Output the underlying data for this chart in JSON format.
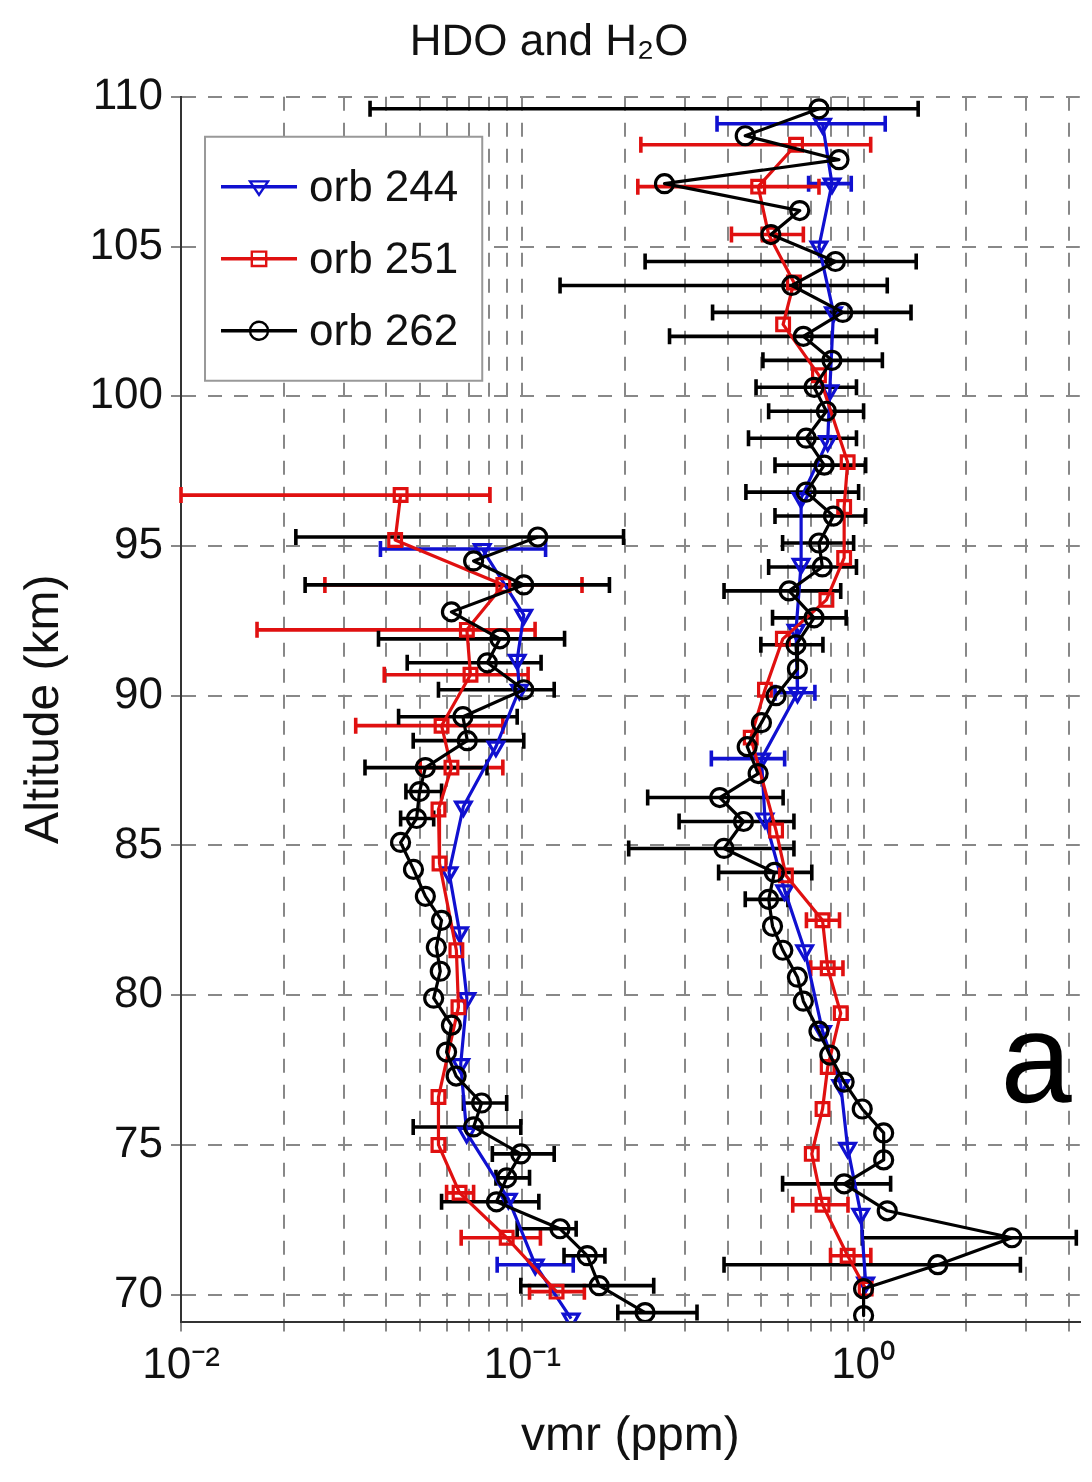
{
  "chart_data": {
    "type": "line",
    "title": "HDO and H₂O",
    "xlabel": "vmr (ppm)",
    "ylabel": "Altitude (km)",
    "annotations": [
      "a"
    ],
    "log": "x",
    "grid": true,
    "legend": "top left",
    "xlim": [
      0.01,
      4.3
    ],
    "ylim": [
      69.1,
      110
    ],
    "xticks": [
      {
        "value": 0.01,
        "label": "10⁻²"
      },
      {
        "value": 0.02,
        "label": null
      },
      {
        "value": 0.03,
        "label": null
      },
      {
        "value": 0.04,
        "label": null
      },
      {
        "value": 0.05,
        "label": null
      },
      {
        "value": 0.06,
        "label": null
      },
      {
        "value": 0.07,
        "label": null
      },
      {
        "value": 0.08,
        "label": null
      },
      {
        "value": 0.09,
        "label": null
      },
      {
        "value": 0.1,
        "label": "10⁻¹"
      },
      {
        "value": 0.2,
        "label": null
      },
      {
        "value": 0.3,
        "label": null
      },
      {
        "value": 0.4,
        "label": null
      },
      {
        "value": 0.5,
        "label": null
      },
      {
        "value": 0.6,
        "label": null
      },
      {
        "value": 0.7,
        "label": null
      },
      {
        "value": 0.8,
        "label": null
      },
      {
        "value": 0.9,
        "label": null
      },
      {
        "value": 1,
        "label": "10⁰"
      },
      {
        "value": 2,
        "label": null
      },
      {
        "value": 3,
        "label": null
      },
      {
        "value": 4,
        "label": null
      }
    ],
    "yticks": [
      70,
      75,
      80,
      85,
      90,
      95,
      100,
      105,
      110
    ],
    "series": [
      {
        "name": "orb 244",
        "color": "#1010d0",
        "marker": "triangle",
        "x": [
          0.758,
          0.808,
          0.74,
          0.816,
          0.796,
          0.785,
          0.656,
          0.656,
          0.634,
          0.64,
          0.502,
          0.514,
          0.587,
          0.672,
          0.758,
          0.857,
          0.898,
          0.981,
          1.014
        ],
        "values": [
          109.1,
          107.1,
          105.0,
          102.8,
          100.2,
          98.5,
          96.6,
          94.4,
          92.2,
          90.1,
          87.9,
          85.9,
          83.5,
          81.5,
          78.8,
          77.0,
          74.9,
          72.7,
          70.4
        ],
        "xerrors": [
          [
            0.372,
            1.157
          ],
          [
            0.69,
            0.92
          ],
          null,
          null,
          null,
          null,
          null,
          null,
          null,
          [
            0.55,
            0.72
          ],
          [
            0.358,
            0.587
          ],
          null,
          null,
          null,
          null,
          null,
          null,
          null,
          null
        ]
      },
      {
        "name": "orb 251",
        "color": "#e01010",
        "marker": "square",
        "x": [
          0.634,
          0.491,
          0.527,
          0.625,
          0.581,
          0.74,
          0.898,
          0.877,
          0.877,
          0.778,
          0.58,
          0.514,
          0.467,
          0.554,
          0.592,
          0.758,
          0.785,
          0.857,
          0.785,
          0.758,
          0.705,
          0.758,
          0.898,
          1.014
        ],
        "values": [
          108.4,
          107.0,
          105.4,
          103.8,
          102.4,
          100.7,
          97.8,
          96.3,
          94.6,
          93.2,
          91.9,
          90.2,
          88.6,
          85.5,
          84.0,
          82.5,
          80.9,
          79.4,
          77.6,
          76.2,
          74.7,
          73.0,
          71.3,
          70.2
        ],
        "xerrors": [
          [
            0.2225,
            1.049
          ],
          [
            0.218,
            0.74
          ],
          [
            0.41,
            0.666
          ],
          null,
          null,
          null,
          null,
          null,
          null,
          null,
          null,
          null,
          null,
          null,
          null,
          [
            0.68,
            0.85
          ],
          [
            0.7,
            0.87
          ],
          null,
          null,
          null,
          null,
          [
            0.62,
            0.9
          ],
          [
            0.8,
            1.05
          ],
          null
        ]
      },
      {
        "name": "orb 262",
        "color": "#000000",
        "marker": "circle",
        "x": [
          0.74,
          0.45,
          0.847,
          0.261,
          0.65,
          0.535,
          0.827,
          0.616,
          0.869,
          0.666,
          0.808,
          0.716,
          0.778,
          0.679,
          0.767,
          0.679,
          0.816,
          0.74,
          0.757,
          0.605,
          0.716,
          0.634,
          0.64,
          0.554,
          0.502,
          0.456,
          0.491,
          0.379,
          0.445,
          0.39,
          0.548,
          0.527,
          0.541,
          0.58,
          0.64,
          0.666,
          0.74,
          0.796,
          0.877,
          0.991,
          1.145,
          1.145,
          0.877,
          1.173,
          2.72,
          1.65,
          1.0,
          1.0
        ],
        "values": [
          109.6,
          108.7,
          107.9,
          107.1,
          106.2,
          105.4,
          104.5,
          103.7,
          102.8,
          102.0,
          101.2,
          100.3,
          99.5,
          98.6,
          97.7,
          96.8,
          96.0,
          95.1,
          94.3,
          93.5,
          92.6,
          91.7,
          90.9,
          90.0,
          89.1,
          88.3,
          87.4,
          86.6,
          85.8,
          84.9,
          84.1,
          83.2,
          82.3,
          81.5,
          80.6,
          79.8,
          78.8,
          78.0,
          77.1,
          76.2,
          75.4,
          74.5,
          73.7,
          72.8,
          71.9,
          71.0,
          70.2,
          69.3
        ],
        "xerrors": [
          [
            0.0358,
            1.445
          ],
          null,
          null,
          null,
          null,
          null,
          [
            0.229,
            1.426
          ],
          [
            0.129,
            1.173
          ],
          [
            0.361,
            1.377
          ],
          [
            0.27,
            1.09
          ],
          [
            0.507,
            1.135
          ],
          [
            0.484,
            0.953
          ],
          [
            0.527,
            1.0
          ],
          [
            0.46,
            0.953
          ],
          [
            0.55,
            1.014
          ],
          [
            0.452,
            0.967
          ],
          [
            0.55,
            1.014
          ],
          [
            0.579,
            0.935
          ],
          [
            0.527,
            0.953
          ],
          [
            0.39,
            0.857
          ],
          [
            0.541,
            0.889
          ],
          [
            0.5,
            0.76
          ],
          null,
          null,
          null,
          null,
          null,
          [
            0.233,
            0.581
          ],
          [
            0.288,
            0.625
          ],
          [
            0.205,
            0.625
          ],
          [
            0.376,
            0.705
          ],
          [
            0.45,
            0.6
          ],
          null,
          null,
          null,
          null,
          null,
          null,
          null,
          null,
          null,
          null,
          [
            0.579,
            1.2
          ],
          null,
          [
            0.991,
            4.2
          ],
          [
            0.39,
            2.88
          ],
          null,
          null
        ]
      },
      {
        "color": "#1010d0",
        "marker": "triangle",
        "x": [
          0.0763,
          0.101,
          0.0966,
          0.098,
          0.0837,
          0.0672,
          0.061,
          0.0655,
          0.0688,
          0.066,
          0.0687,
          0.091,
          0.1091,
          0.139
        ],
        "values": [
          94.9,
          92.7,
          91.2,
          90.2,
          88.3,
          86.3,
          84.1,
          82.1,
          79.9,
          77.7,
          75.4,
          73.2,
          71.0,
          69.2
        ],
        "xerrors": [
          [
            0.0384,
            0.117
          ],
          null,
          null,
          null,
          null,
          null,
          null,
          null,
          null,
          null,
          null,
          null,
          [
            0.0844,
            0.141
          ],
          null
        ]
      },
      {
        "color": "#e01010",
        "marker": "square",
        "x": [
          0.044,
          0.0424,
          0.088,
          0.0688,
          0.0705,
          0.058,
          0.062,
          0.0568,
          0.0572,
          0.0641,
          0.065,
          0.0568,
          0.0568,
          0.0655,
          0.09,
          0.126
        ],
        "values": [
          96.7,
          95.2,
          93.7,
          92.2,
          90.7,
          89.0,
          87.6,
          86.2,
          84.4,
          81.5,
          79.6,
          76.6,
          75.0,
          73.4,
          71.9,
          70.1
        ],
        "xerrors": [
          [
            0.01,
            0.0804
          ],
          null,
          [
            0.0264,
            0.1496
          ],
          [
            0.0167,
            0.109
          ],
          [
            0.0394,
            0.104
          ],
          [
            0.0325,
            0.0877
          ],
          [
            0.0502,
            0.0877
          ],
          null,
          null,
          null,
          null,
          null,
          null,
          [
            0.06,
            0.072
          ],
          [
            0.0662,
            0.113
          ],
          [
            0.105,
            0.152
          ]
        ]
      },
      {
        "color": "#000000",
        "marker": "circle",
        "x": [
          0.111,
          0.072,
          0.101,
          0.062,
          0.086,
          0.079,
          0.101,
          0.067,
          0.069,
          0.052,
          0.05,
          0.049,
          0.044,
          0.048,
          0.052,
          0.058,
          0.056,
          0.0575,
          0.055,
          0.062,
          0.06,
          0.064,
          0.076,
          0.072,
          0.099,
          0.09,
          0.084,
          0.129,
          0.155,
          0.168,
          0.229
        ],
        "values": [
          95.3,
          94.5,
          93.7,
          92.8,
          91.9,
          91.1,
          90.2,
          89.3,
          88.5,
          87.6,
          86.8,
          85.9,
          85.1,
          84.2,
          83.3,
          82.5,
          81.6,
          80.8,
          79.9,
          79.0,
          78.1,
          77.3,
          76.4,
          75.6,
          74.7,
          73.9,
          73.1,
          72.2,
          71.3,
          70.3,
          69.4
        ],
        "xerrors": [
          [
            0.0217,
            0.198
          ],
          null,
          [
            0.0231,
            0.18
          ],
          null,
          [
            0.0379,
            0.133
          ],
          [
            0.046,
            0.1135
          ],
          [
            0.0568,
            0.124
          ],
          [
            0.0434,
            0.0966
          ],
          [
            0.0479,
            0.101
          ],
          [
            0.0346,
            0.0788
          ],
          [
            0.0456,
            0.058
          ],
          [
            0.044,
            0.055
          ],
          null,
          null,
          null,
          null,
          null,
          null,
          null,
          null,
          null,
          null,
          [
            0.0672,
            0.09
          ],
          [
            0.0479,
            0.099
          ],
          [
            0.0817,
            0.124
          ],
          [
            0.0837,
            0.105
          ],
          [
            0.058,
            0.1118
          ],
          [
            0.0966,
            0.1438
          ],
          [
            0.1325,
            0.1746
          ],
          [
            0.099,
            0.2427
          ],
          [
            0.1905,
            0.325
          ]
        ]
      }
    ]
  }
}
